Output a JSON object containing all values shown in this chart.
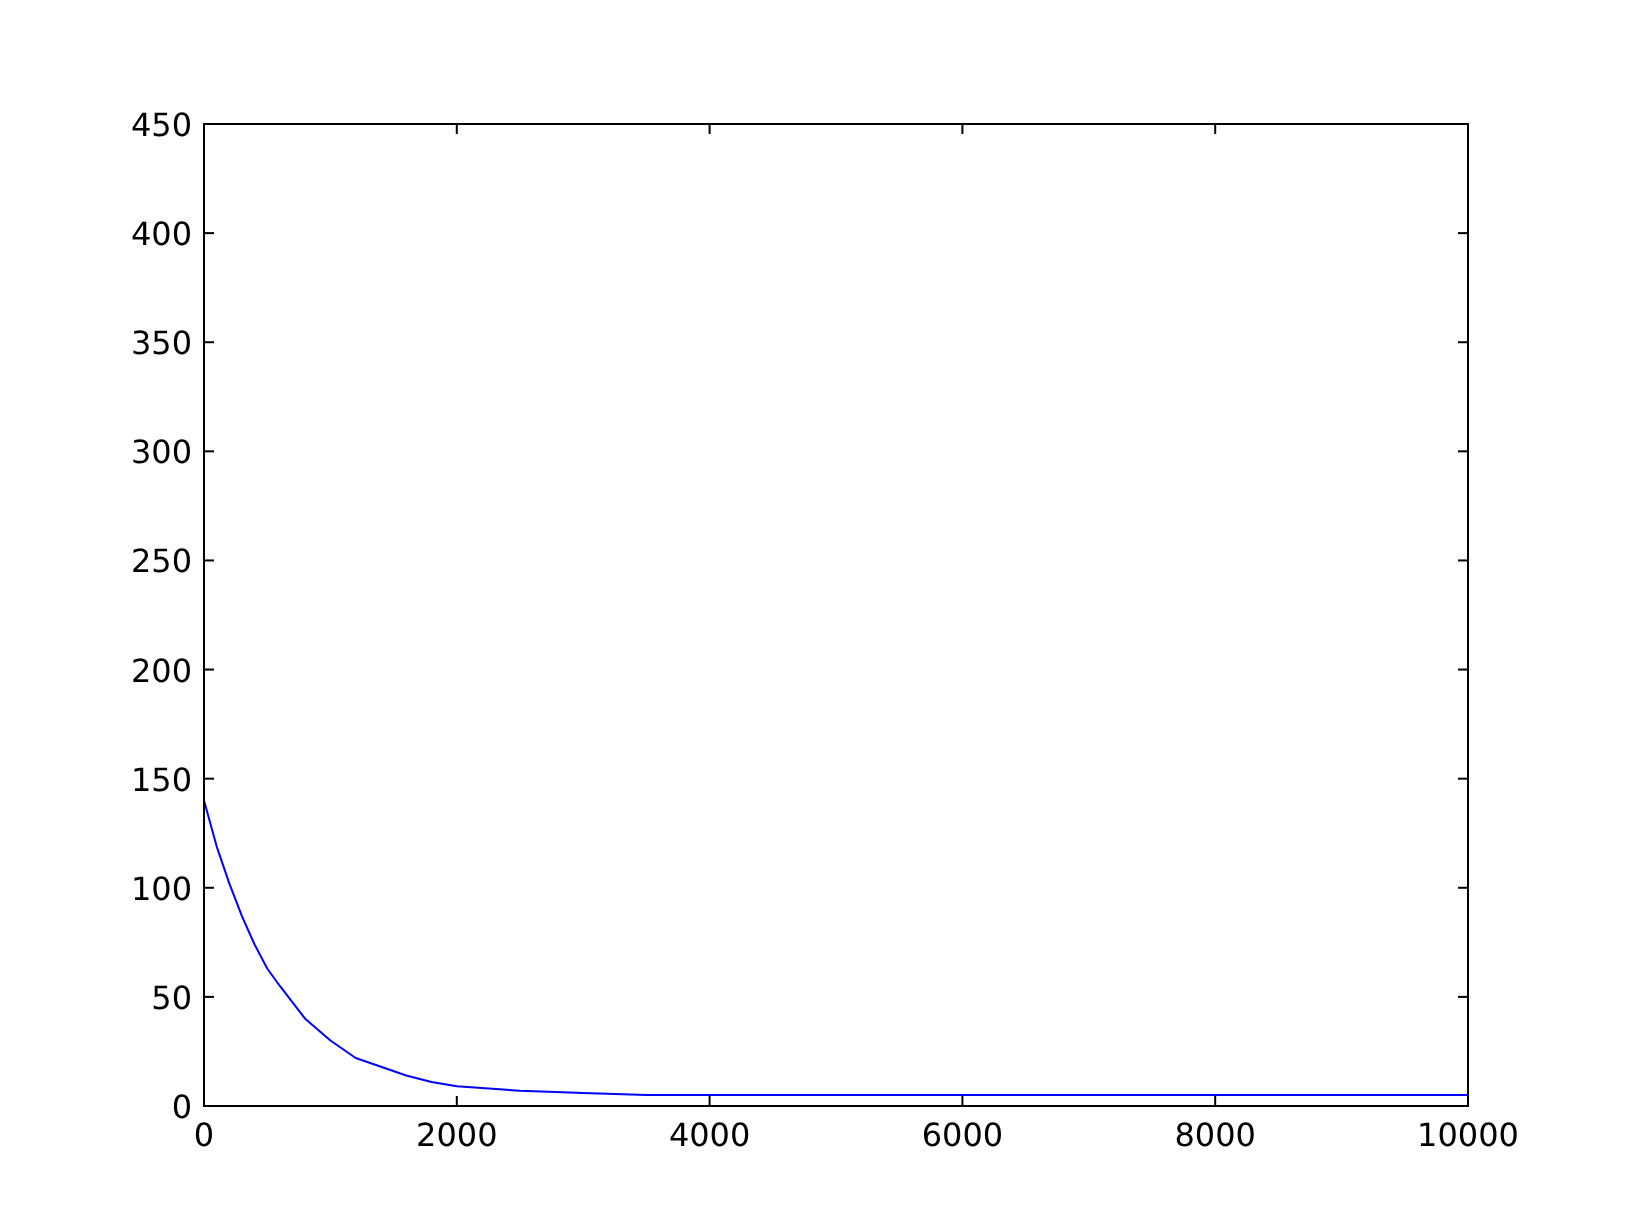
{
  "chart_data": {
    "type": "line",
    "x": [
      0,
      100,
      200,
      300,
      400,
      500,
      600,
      800,
      1000,
      1200,
      1400,
      1600,
      1800,
      2000,
      2500,
      3000,
      3500,
      4000,
      5000,
      6000,
      8000,
      10000
    ],
    "series": [
      {
        "color": "#0000ff",
        "values": [
          140,
          119,
          102,
          87,
          74,
          63,
          55,
          40,
          30,
          22,
          18,
          14,
          11,
          9,
          7,
          6,
          5,
          5,
          5,
          5,
          5,
          5
        ]
      }
    ],
    "xlim": [
      0,
      10000
    ],
    "xticks": [
      0,
      2000,
      4000,
      6000,
      8000,
      10000
    ],
    "ylim": [
      0,
      450
    ],
    "yticks": [
      0,
      50,
      100,
      150,
      200,
      250,
      300,
      350,
      400,
      450
    ],
    "grid": false,
    "marker": "none",
    "line_style": "solid"
  }
}
